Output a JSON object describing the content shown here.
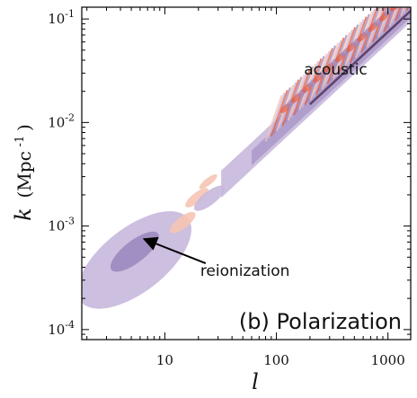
{
  "chart_data": {
    "type": "contour",
    "title": "",
    "panel_label": "(b) Polarization",
    "xlabel": "l",
    "ylabel_main": "k",
    "ylabel_unit_base": "(Mpc",
    "ylabel_unit_exp": "-1",
    "ylabel_unit_close": ")",
    "x_scale": "log",
    "y_scale": "log",
    "xlim": [
      1.8,
      1600
    ],
    "ylim": [
      8e-05,
      0.13
    ],
    "x_ticks": [
      {
        "value": 10,
        "label": "10"
      },
      {
        "value": 100,
        "label": "100"
      },
      {
        "value": 1000,
        "label": "1000"
      }
    ],
    "y_ticks": [
      {
        "value": 0.0001,
        "base": "10",
        "exp": "-4"
      },
      {
        "value": 0.001,
        "base": "10",
        "exp": "-3"
      },
      {
        "value": 0.01,
        "base": "10",
        "exp": "-2"
      },
      {
        "value": 0.1,
        "base": "10",
        "exp": "-1"
      }
    ],
    "grid": false,
    "colors": {
      "positive_light": "#c8b8dc",
      "positive_dark": "#9c88c0",
      "negative_light": "#f6c4b4",
      "negative_dark": "#e85a3a",
      "deep": "#4a2a50"
    },
    "regions": [
      {
        "name": "reionization-outer",
        "color": "positive_light",
        "l_center": 6,
        "k_center": 0.0006,
        "l_span": [
          1.9,
          15
        ],
        "k_span": [
          0.00017,
          0.0013
        ]
      },
      {
        "name": "reionization-inner",
        "color": "positive_dark",
        "l_center": 6,
        "k_center": 0.0006,
        "l_span": [
          3.2,
          9
        ],
        "k_span": [
          0.0004,
          0.0008
        ]
      },
      {
        "name": "blob-1",
        "color": "negative_light",
        "l_center": 14,
        "k_center": 0.0011,
        "l_span": [
          11,
          19
        ],
        "k_span": [
          0.0009,
          0.0013
        ]
      },
      {
        "name": "blob-2",
        "color": "negative_light",
        "l_center": 20,
        "k_center": 0.0019,
        "l_span": [
          15,
          25
        ],
        "k_span": [
          0.0016,
          0.0022
        ]
      },
      {
        "name": "blob-3",
        "color": "positive_light",
        "l_center": 25,
        "k_center": 0.0018,
        "l_span": [
          18,
          35
        ],
        "k_span": [
          0.0015,
          0.0023
        ]
      },
      {
        "name": "blob-4",
        "color": "negative_light",
        "l_center": 25,
        "k_center": 0.0027,
        "l_span": [
          20,
          30
        ],
        "k_span": [
          0.0024,
          0.003
        ]
      }
    ],
    "annotations": [
      {
        "text": "acoustic",
        "l": 340,
        "k": 0.029
      },
      {
        "text": "reionization",
        "l": 25,
        "k": 0.00033,
        "arrow_to_l": 6.5,
        "arrow_to_k": 0.00075
      }
    ]
  }
}
